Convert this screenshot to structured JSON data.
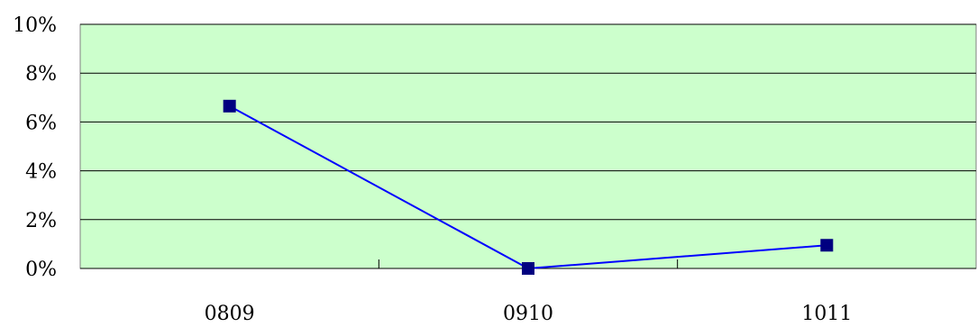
{
  "chart_data": {
    "type": "line",
    "title": "",
    "xlabel": "",
    "ylabel": "",
    "categories": [
      "0809",
      "0910",
      "1011"
    ],
    "series": [
      {
        "values": [
          6.65,
          0.0,
          0.95
        ]
      }
    ],
    "ylim": [
      0,
      10
    ],
    "yticks": [
      0,
      2,
      4,
      6,
      8,
      10
    ],
    "ytick_labels": [
      "0%",
      "2%",
      "4%",
      "6%",
      "8%",
      "10%"
    ],
    "grid": true,
    "legend": "none",
    "colors": {
      "plot_background": "#ccffcc",
      "line": "#0000ff",
      "marker": "#000080",
      "gridline": "#000000"
    }
  }
}
